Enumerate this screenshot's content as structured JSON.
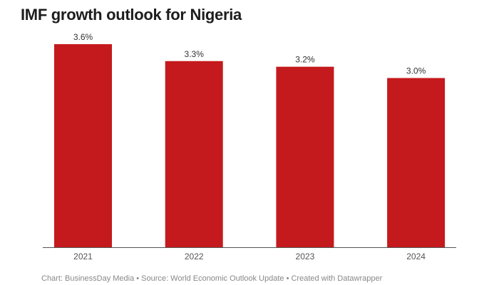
{
  "chart_data": {
    "type": "bar",
    "title": "IMF growth outlook for Nigeria",
    "categories": [
      "2021",
      "2022",
      "2023",
      "2024"
    ],
    "values": [
      3.6,
      3.3,
      3.2,
      3.0
    ],
    "data_labels": [
      "3.6%",
      "3.3%",
      "3.2%",
      "3.0%"
    ],
    "xlabel": "",
    "ylabel": "",
    "ylim": [
      0,
      3.6
    ],
    "grid": false,
    "bar_color": "#c41a1d"
  },
  "footer": "Chart: BusinessDay Media • Source: World Economic Outlook Update • Created with Datawrapper"
}
